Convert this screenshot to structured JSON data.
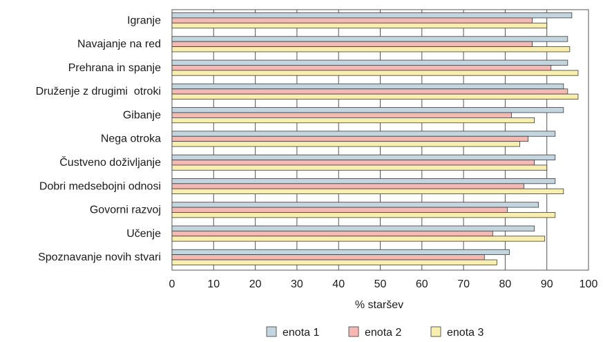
{
  "chart_data": {
    "type": "bar",
    "orientation": "horizontal",
    "categories": [
      "Igranje",
      "Navajanje na red",
      "Prehrana in spanje",
      "Druženje z drugimi  otroki",
      "Gibanje",
      "Nega otroka",
      "Čustveno doživljanje",
      "Dobri medsebojni odnosi",
      "Govorni razvoj",
      "Učenje",
      "Spoznavanje novih stvari"
    ],
    "series": [
      {
        "name": "enota 1",
        "color": "#c3d6e0",
        "values": [
          96,
          95,
          95,
          94,
          94,
          92,
          92,
          92,
          88,
          87,
          81
        ]
      },
      {
        "name": "enota 2",
        "color": "#f4b9b2",
        "values": [
          86.5,
          86.5,
          91,
          95,
          81.5,
          85.5,
          87,
          84.5,
          80.5,
          77,
          75
        ]
      },
      {
        "name": "enota 3",
        "color": "#f8eeb0",
        "values": [
          90,
          95.5,
          97.5,
          97.5,
          87,
          83.5,
          90,
          94,
          92,
          89.5,
          78
        ]
      }
    ],
    "xlabel": "% staršev",
    "xlim": [
      0,
      100
    ],
    "xticks": [
      "0",
      "10",
      "20",
      "30",
      "40",
      "50",
      "60",
      "70",
      "80",
      "90",
      "100"
    ],
    "grid": "vertical",
    "legend": "bottom"
  }
}
